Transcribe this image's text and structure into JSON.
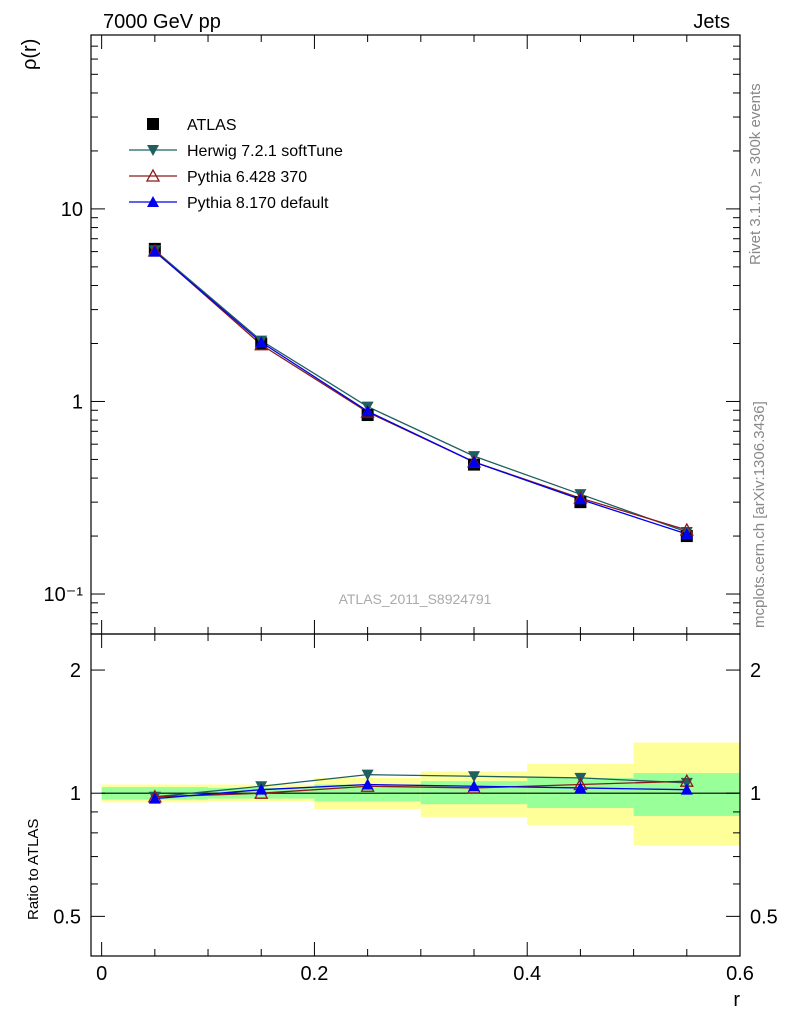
{
  "header": {
    "left": "7000 GeV pp",
    "right": "Jets"
  },
  "side_labels": {
    "rivet": "Rivet 3.1.10, ≥ 300k events",
    "mcplots": "mcplots.cern.ch [arXiv:1306.3436]"
  },
  "watermark": "ATLAS_2011_S8924791",
  "colors": {
    "atlas": "#000000",
    "herwig": "#1f5f5f",
    "pythia6": "#8b1a1a",
    "pythia8": "#0000ee",
    "band_inner": "#99ff99",
    "band_outer": "#ffff99"
  },
  "chart_data": [
    {
      "type": "line",
      "panel": "main",
      "ylabel": "ρ(r)",
      "xlim": [
        -0.01,
        0.6
      ],
      "ylim": [
        0.062,
        80
      ],
      "yscale": "log",
      "ytick_labels": [
        {
          "value": 10,
          "label": "10"
        },
        {
          "value": 1,
          "label": "1"
        },
        {
          "value": 0.1,
          "label": "10⁻¹"
        }
      ],
      "x": [
        0.05,
        0.15,
        0.25,
        0.35,
        0.45,
        0.55
      ],
      "legend": {
        "position": "top-left"
      },
      "series": [
        {
          "name": "ATLAS",
          "marker": "square",
          "values": [
            6.2,
            2.0,
            0.85,
            0.47,
            0.3,
            0.2
          ]
        },
        {
          "name": "Herwig 7.2.1 softTune",
          "marker": "triangle-down",
          "values": [
            6.1,
            2.07,
            0.94,
            0.52,
            0.33,
            0.21
          ]
        },
        {
          "name": "Pythia 6.428 370",
          "marker": "triangle-up-open",
          "values": [
            6.05,
            1.97,
            0.88,
            0.485,
            0.315,
            0.215
          ]
        },
        {
          "name": "Pythia 8.170 default",
          "marker": "triangle-up",
          "values": [
            6.0,
            2.03,
            0.89,
            0.485,
            0.31,
            0.205
          ]
        }
      ]
    },
    {
      "type": "line",
      "panel": "ratio",
      "xlabel": "r",
      "ylabel": "Ratio to ATLAS",
      "xlim": [
        -0.01,
        0.6
      ],
      "ylim": [
        0.4,
        2.45
      ],
      "yscale": "log",
      "xtick_labels": [
        {
          "value": 0,
          "label": "0"
        },
        {
          "value": 0.2,
          "label": "0.2"
        },
        {
          "value": 0.4,
          "label": "0.4"
        },
        {
          "value": 0.6,
          "label": "0.6"
        }
      ],
      "ytick_labels": [
        {
          "value": 2,
          "label": "2"
        },
        {
          "value": 1,
          "label": "1"
        },
        {
          "value": 0.5,
          "label": "0.5"
        }
      ],
      "x": [
        0.05,
        0.15,
        0.25,
        0.35,
        0.45,
        0.55
      ],
      "bands": {
        "x_edges": [
          0.0,
          0.1,
          0.2,
          0.3,
          0.4,
          0.5,
          0.6
        ],
        "inner_low": [
          0.965,
          0.97,
          0.955,
          0.94,
          0.92,
          0.88
        ],
        "inner_high": [
          1.035,
          1.03,
          1.05,
          1.07,
          1.09,
          1.12
        ],
        "outer_low": [
          0.95,
          0.955,
          0.915,
          0.875,
          0.835,
          0.745
        ],
        "outer_high": [
          1.05,
          1.05,
          1.09,
          1.13,
          1.18,
          1.33
        ]
      },
      "series": [
        {
          "name": "Herwig 7.2.1 softTune",
          "values": [
            0.98,
            1.04,
            1.11,
            1.1,
            1.09,
            1.06
          ]
        },
        {
          "name": "Pythia 6.428 370",
          "values": [
            0.98,
            1.0,
            1.04,
            1.03,
            1.05,
            1.07
          ]
        },
        {
          "name": "Pythia 8.170 default",
          "values": [
            0.97,
            1.02,
            1.05,
            1.04,
            1.03,
            1.02
          ]
        }
      ]
    }
  ]
}
